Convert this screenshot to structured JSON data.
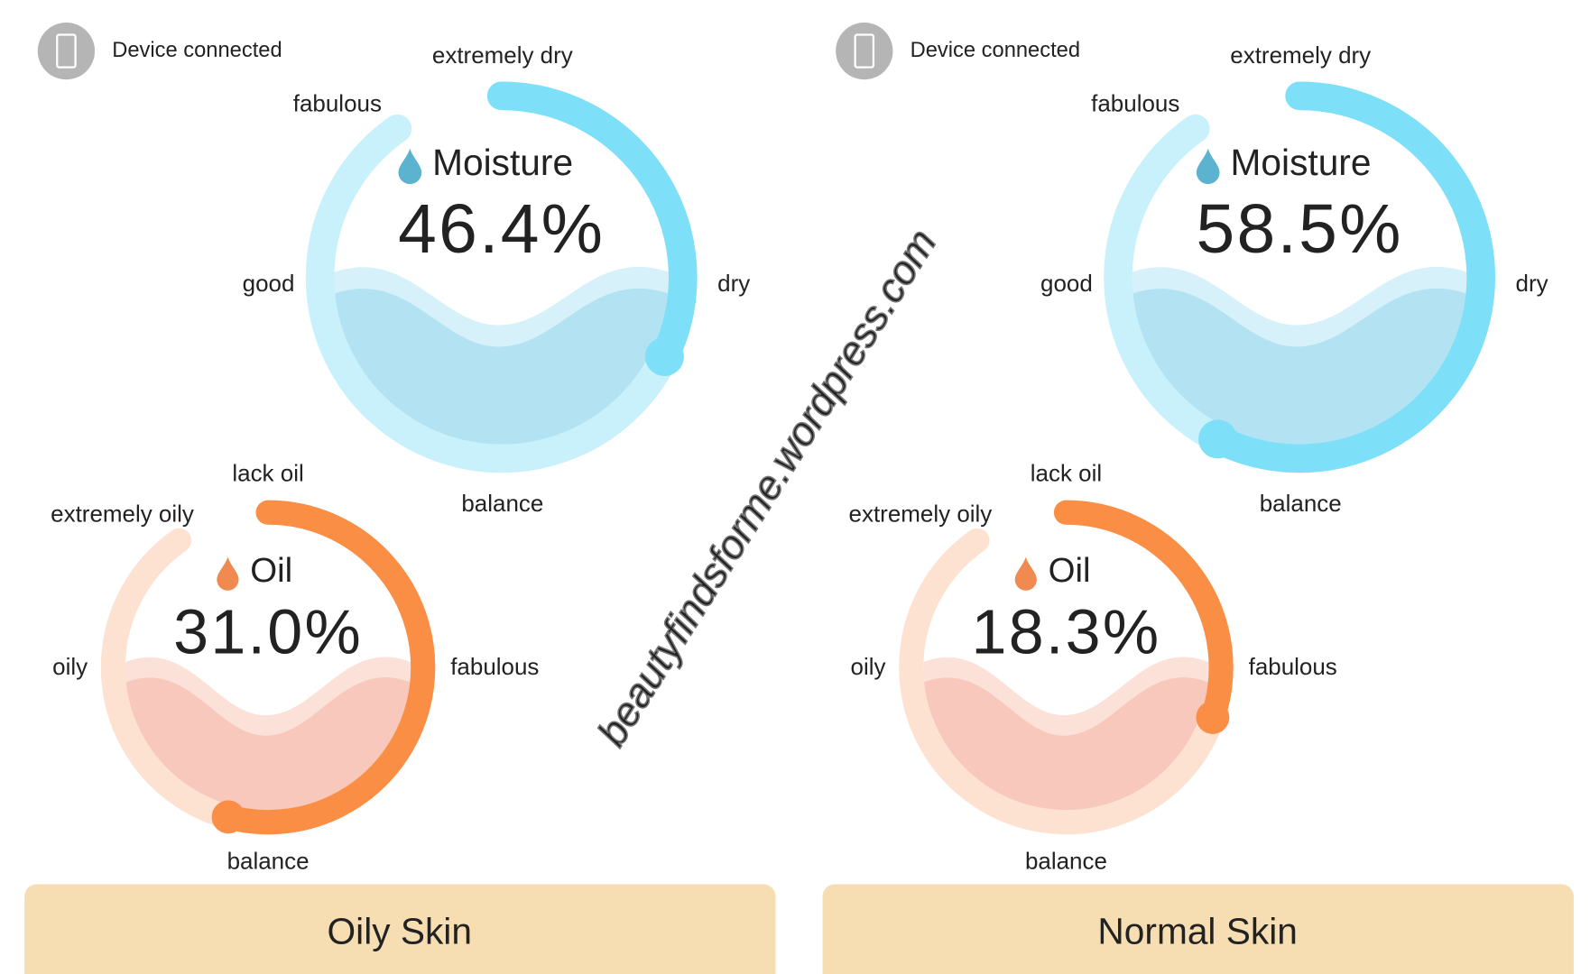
{
  "panels": [
    {
      "status": "Device connected",
      "moisture": {
        "title": "Moisture",
        "value": 46.4,
        "value_label": "46.4%",
        "scale": [
          "extremely dry",
          "dry",
          "balance",
          "good",
          "fabulous"
        ]
      },
      "oil": {
        "title": "Oil",
        "value": 31.0,
        "value_label": "31.0%",
        "scale": [
          "lack oil",
          "fabulous",
          "balance",
          "oily",
          "extremely oily"
        ]
      },
      "result": "Oily Skin"
    },
    {
      "status": "Device connected",
      "moisture": {
        "title": "Moisture",
        "value": 58.5,
        "value_label": "58.5%",
        "scale": [
          "extremely dry",
          "dry",
          "balance",
          "good",
          "fabulous"
        ]
      },
      "oil": {
        "title": "Oil",
        "value": 18.3,
        "value_label": "18.3%",
        "scale": [
          "lack oil",
          "fabulous",
          "balance",
          "oily",
          "extremely oily"
        ]
      },
      "result": "Normal Skin"
    }
  ],
  "watermark": "beautyfindsforme.wordpress.com"
}
